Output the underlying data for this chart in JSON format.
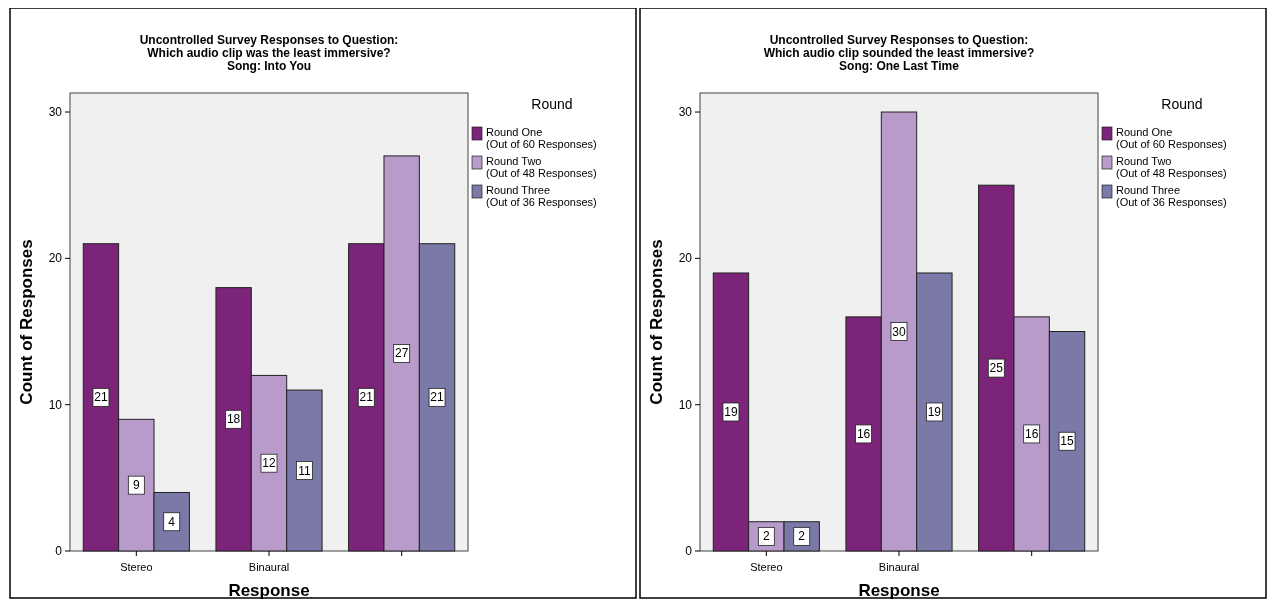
{
  "chart_data": [
    {
      "type": "bar",
      "title": "Uncontrolled Survey Responses to Question:\nWhich audio clip was the least immersive?",
      "subtitle": "Song: Into You",
      "xlabel": "Response",
      "ylabel": "Count of Responses",
      "legend_title": "Round",
      "categories": [
        "Stereo",
        "Binaural",
        null
      ],
      "ylim": [
        0,
        31.3
      ],
      "yticks": [
        0,
        10,
        20,
        30
      ],
      "data_labels": true,
      "legend": "right",
      "grid": false,
      "series": [
        {
          "name": "Round One\n(Out of 60 Responses)",
          "color": "#7b2479",
          "values": [
            21,
            18,
            21
          ]
        },
        {
          "name": "Round Two\n(Out of 48 Responses)",
          "color": "#b99bcb",
          "values": [
            9,
            12,
            27
          ]
        },
        {
          "name": "Round Three\n(Out of 36 Responses)",
          "color": "#7a79a8",
          "values": [
            4,
            11,
            21
          ]
        }
      ]
    },
    {
      "type": "bar",
      "title": "Uncontrolled Survey Responses to Question:\nWhich audio clip sounded the least immersive?",
      "subtitle": "Song: One Last Time",
      "xlabel": "Response",
      "ylabel": "Count of Responses",
      "legend_title": "Round",
      "categories": [
        "Stereo",
        "Binaural",
        null
      ],
      "ylim": [
        0,
        31.3
      ],
      "yticks": [
        0,
        10,
        20,
        30
      ],
      "data_labels": true,
      "legend": "right",
      "grid": false,
      "series": [
        {
          "name": "Round One\n(Out of 60 Responses)",
          "color": "#7b2479",
          "values": [
            19,
            16,
            25
          ]
        },
        {
          "name": "Round Two\n(Out of 48 Responses)",
          "color": "#b99bcb",
          "values": [
            2,
            30,
            16
          ]
        },
        {
          "name": "Round Three\n(Out of 36 Responses)",
          "color": "#7a79a8",
          "values": [
            2,
            19,
            15
          ]
        }
      ]
    }
  ]
}
